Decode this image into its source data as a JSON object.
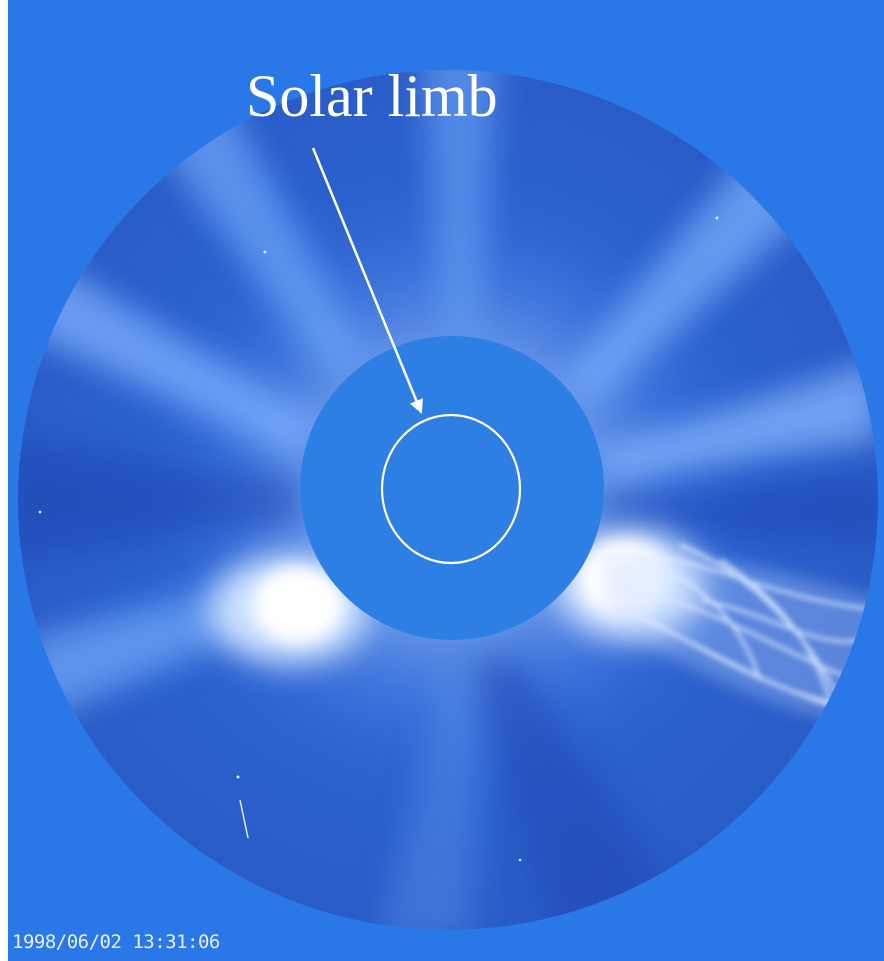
{
  "image": {
    "annotation": {
      "label": "Solar limb"
    },
    "timestamp": "1998/06/02 13:31:06",
    "colors": {
      "field_background": "#2a78e8",
      "occulter_disk": "#2e7fe4",
      "solar_limb_circle": "#fffbe0",
      "arrow": "#ffffff",
      "corona_bright": "#ffffff"
    },
    "features": [
      "coronagraph-field",
      "occulter-disk",
      "solar-limb-circle",
      "annotation-arrow",
      "coronal-streamers",
      "coronal-mass-ejection",
      "star-points"
    ]
  }
}
